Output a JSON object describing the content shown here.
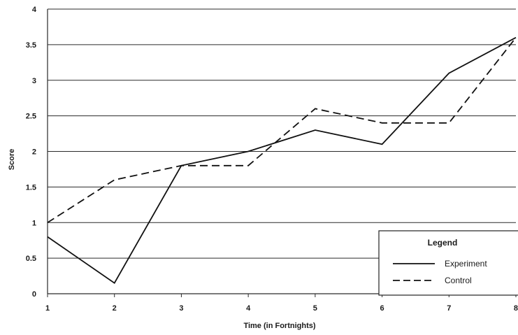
{
  "chart_data": {
    "type": "line",
    "xlabel": "Time (in Fortnights)",
    "ylabel": "Score",
    "x": [
      1,
      2,
      3,
      4,
      5,
      6,
      7,
      8
    ],
    "xlim": [
      1,
      8
    ],
    "ylim": [
      0,
      4
    ],
    "y_ticks": [
      "0",
      "0.5",
      "1",
      "1.5",
      "2",
      "2.5",
      "3",
      "3.5",
      "4"
    ],
    "x_ticks": [
      "1",
      "2",
      "3",
      "4",
      "5",
      "6",
      "7",
      "8"
    ],
    "grid": "horizontal",
    "legend": {
      "title": "Legend",
      "position": "bottom-right"
    },
    "series": [
      {
        "name": "Experiment",
        "style": "solid",
        "color": "#111111",
        "values": [
          0.8,
          0.15,
          1.8,
          2.0,
          2.3,
          2.1,
          3.1,
          3.6
        ]
      },
      {
        "name": "Control",
        "style": "dashed",
        "color": "#111111",
        "values": [
          1.0,
          1.6,
          1.8,
          1.8,
          2.6,
          2.4,
          2.4,
          3.6
        ]
      }
    ]
  }
}
